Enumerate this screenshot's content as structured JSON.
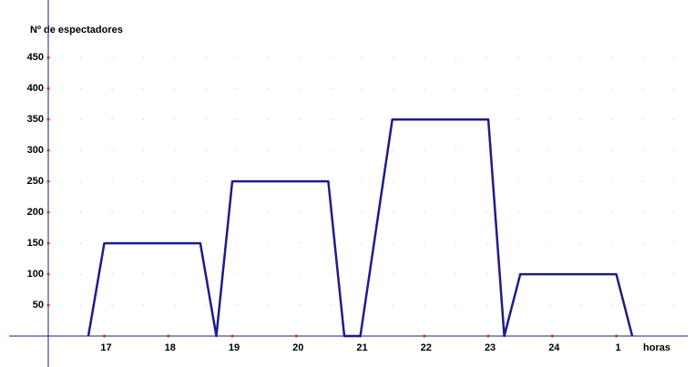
{
  "chart_data": {
    "type": "line",
    "y_label": "Nº de espectadores",
    "x_label": "horas",
    "x": [
      16.75,
      17,
      18.5,
      18.75,
      19,
      20.5,
      20.75,
      21,
      21.5,
      23,
      23.25,
      23.5,
      25,
      25.25
    ],
    "values": [
      0,
      150,
      150,
      0,
      250,
      250,
      0,
      0,
      350,
      350,
      0,
      100,
      100,
      0
    ],
    "color": "#1c1c8a",
    "xlim": [
      15.37,
      26.23
    ],
    "ylim": [
      -50,
      543
    ],
    "xticks": [
      17,
      18,
      19,
      20,
      21,
      22,
      23,
      24,
      {
        "value": 25,
        "label": "1"
      }
    ],
    "yticks": [
      50,
      100,
      150,
      200,
      250,
      300,
      350,
      400,
      450
    ],
    "grid": true
  }
}
